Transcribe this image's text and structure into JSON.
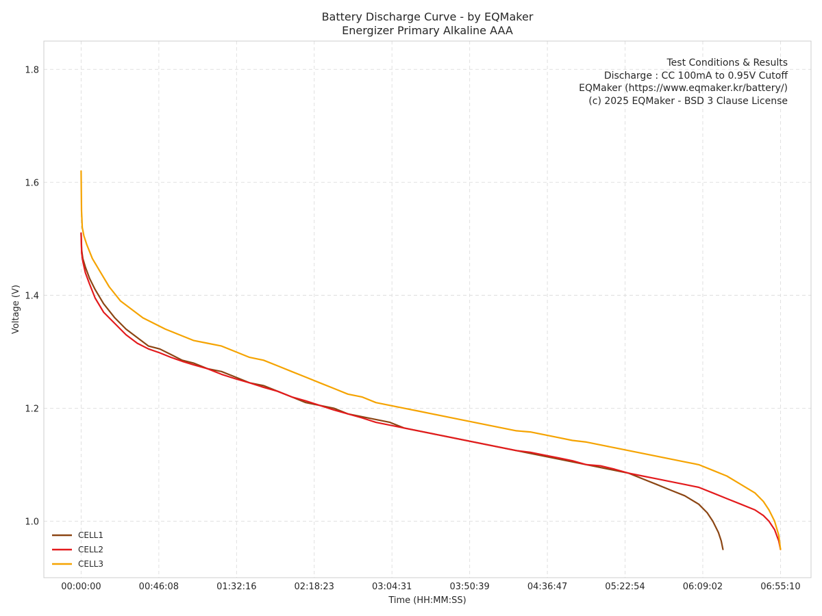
{
  "chart_data": {
    "type": "line",
    "title": "Battery Discharge Curve - by EQMaker",
    "subtitle": "Energizer Primary Alkaline AAA",
    "xlabel": "Time (HH:MM:SS)",
    "ylabel": "Voltage (V)",
    "xlim_seconds": [
      -1328,
      25998
    ],
    "ylim": [
      0.9,
      1.85
    ],
    "grid": true,
    "x_ticks_seconds": [
      0,
      2768,
      5536,
      8303,
      11071,
      13839,
      16607,
      19374,
      22142,
      24910
    ],
    "x_tick_labels": [
      "00:00:00",
      "00:46:08",
      "01:32:16",
      "02:18:23",
      "03:04:31",
      "03:50:39",
      "04:36:47",
      "05:22:54",
      "06:09:02",
      "06:55:10"
    ],
    "y_ticks": [
      1.0,
      1.2,
      1.4,
      1.6,
      1.8
    ],
    "y_tick_labels": [
      "1.0",
      "1.2",
      "1.4",
      "1.6",
      "1.8"
    ],
    "legend_position": "lower-left",
    "annotation_lines": [
      "Test Conditions & Results",
      "Discharge : CC 100mA to 0.95V Cutoff",
      "EQMaker (https://www.eqmaker.kr/battery/)",
      "(c) 2025 EQMaker - BSD 3 Clause License"
    ],
    "series": [
      {
        "name": "CELL1",
        "color": "#8b4513",
        "x_seconds": [
          0,
          20,
          60,
          150,
          300,
          500,
          800,
          1200,
          1600,
          2000,
          2400,
          2800,
          3200,
          3600,
          4000,
          4500,
          5000,
          5500,
          6000,
          6500,
          7000,
          7500,
          8000,
          8500,
          9000,
          9500,
          10000,
          10500,
          11000,
          11500,
          12000,
          12500,
          13000,
          13500,
          14000,
          14500,
          15000,
          15500,
          16000,
          16500,
          17000,
          17500,
          18000,
          18500,
          19000,
          19500,
          20000,
          20500,
          21000,
          21500,
          22000,
          22300,
          22500,
          22700,
          22800,
          22860
        ],
        "values": [
          1.51,
          1.48,
          1.465,
          1.45,
          1.43,
          1.41,
          1.385,
          1.36,
          1.34,
          1.325,
          1.31,
          1.305,
          1.295,
          1.285,
          1.28,
          1.27,
          1.265,
          1.255,
          1.245,
          1.24,
          1.23,
          1.22,
          1.21,
          1.205,
          1.2,
          1.19,
          1.185,
          1.18,
          1.175,
          1.165,
          1.16,
          1.155,
          1.15,
          1.145,
          1.14,
          1.135,
          1.13,
          1.125,
          1.12,
          1.115,
          1.11,
          1.105,
          1.1,
          1.095,
          1.09,
          1.085,
          1.075,
          1.065,
          1.055,
          1.045,
          1.03,
          1.015,
          1.0,
          0.98,
          0.965,
          0.95
        ]
      },
      {
        "name": "CELL2",
        "color": "#e31a1c",
        "x_seconds": [
          0,
          20,
          60,
          150,
          300,
          500,
          800,
          1200,
          1600,
          2000,
          2400,
          2800,
          3200,
          3600,
          4000,
          4500,
          5000,
          5500,
          6000,
          6500,
          7000,
          7500,
          8000,
          8500,
          9000,
          9500,
          10000,
          10500,
          11000,
          11500,
          12000,
          12500,
          13000,
          13500,
          14000,
          14500,
          15000,
          15500,
          16000,
          16500,
          17000,
          17500,
          18000,
          18500,
          19000,
          19500,
          20000,
          20500,
          21000,
          21500,
          22000,
          22500,
          23000,
          23500,
          24000,
          24300,
          24500,
          24700,
          24850,
          24910
        ],
        "values": [
          1.51,
          1.475,
          1.46,
          1.44,
          1.42,
          1.395,
          1.37,
          1.35,
          1.33,
          1.315,
          1.305,
          1.298,
          1.29,
          1.283,
          1.277,
          1.27,
          1.26,
          1.252,
          1.245,
          1.237,
          1.23,
          1.22,
          1.213,
          1.205,
          1.197,
          1.19,
          1.183,
          1.175,
          1.17,
          1.165,
          1.16,
          1.155,
          1.15,
          1.145,
          1.14,
          1.135,
          1.13,
          1.125,
          1.122,
          1.117,
          1.112,
          1.107,
          1.1,
          1.098,
          1.092,
          1.085,
          1.08,
          1.075,
          1.07,
          1.065,
          1.06,
          1.05,
          1.04,
          1.03,
          1.02,
          1.01,
          1.0,
          0.985,
          0.965,
          0.95
        ]
      },
      {
        "name": "CELL3",
        "color": "#f5a300",
        "x_seconds": [
          0,
          15,
          40,
          100,
          200,
          400,
          700,
          1000,
          1400,
          1800,
          2200,
          2600,
          3000,
          3500,
          4000,
          4500,
          5000,
          5500,
          6000,
          6500,
          7000,
          7500,
          8000,
          8500,
          9000,
          9500,
          10000,
          10500,
          11000,
          11500,
          12000,
          12500,
          13000,
          13500,
          14000,
          14500,
          15000,
          15500,
          16000,
          16500,
          17000,
          17500,
          18000,
          18500,
          19000,
          19500,
          20000,
          20500,
          21000,
          21500,
          22000,
          22500,
          23000,
          23500,
          24000,
          24300,
          24500,
          24700,
          24850,
          24910
        ],
        "values": [
          1.62,
          1.55,
          1.52,
          1.505,
          1.49,
          1.465,
          1.44,
          1.415,
          1.39,
          1.375,
          1.36,
          1.35,
          1.34,
          1.33,
          1.32,
          1.315,
          1.31,
          1.3,
          1.29,
          1.285,
          1.275,
          1.265,
          1.255,
          1.245,
          1.235,
          1.225,
          1.22,
          1.21,
          1.205,
          1.2,
          1.195,
          1.19,
          1.185,
          1.18,
          1.175,
          1.17,
          1.165,
          1.16,
          1.158,
          1.153,
          1.148,
          1.143,
          1.14,
          1.135,
          1.13,
          1.125,
          1.12,
          1.115,
          1.11,
          1.105,
          1.1,
          1.09,
          1.08,
          1.065,
          1.05,
          1.035,
          1.02,
          1.0,
          0.975,
          0.95
        ]
      }
    ]
  }
}
